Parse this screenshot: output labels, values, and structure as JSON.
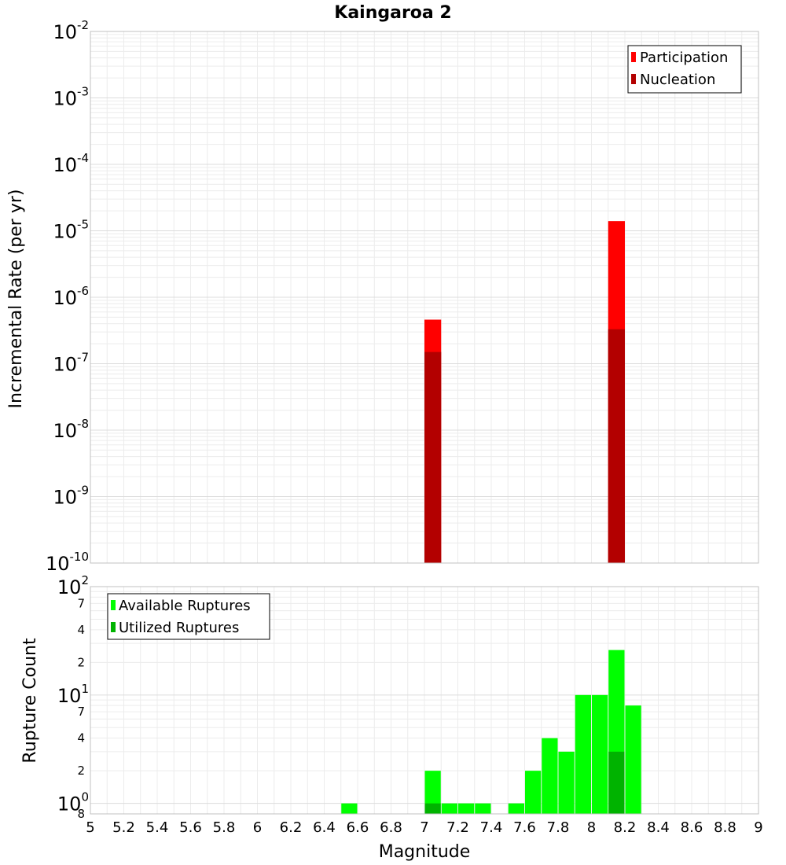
{
  "chart_data": [
    {
      "type": "bar",
      "title": "Kaingaroa 2",
      "ylabel": "Incremental Rate (per yr)",
      "yscale": "log",
      "ylim": [
        1e-10,
        0.01
      ],
      "xlim": [
        5,
        9
      ],
      "bar_width": 0.1,
      "y_tick_exponents": [
        "-10",
        "-9",
        "-8",
        "-7",
        "-6",
        "-5",
        "-4",
        "-3",
        "-2"
      ],
      "y_tick_base": "10",
      "legend": {
        "position": "top-right"
      },
      "grid": true,
      "series": [
        {
          "name": "Participation",
          "color": "#ff0000",
          "x": [
            7.05,
            8.15
          ],
          "values": [
            4.6e-07,
            1.4e-05
          ]
        },
        {
          "name": "Nucleation",
          "color": "#b30000",
          "x": [
            7.05,
            8.15
          ],
          "values": [
            1.5e-07,
            3.3e-07
          ]
        }
      ]
    },
    {
      "type": "bar",
      "xlabel": "Magnitude",
      "ylabel": "Rupture Count",
      "yscale": "log",
      "ylim": [
        0.8,
        100
      ],
      "xlim": [
        5,
        9
      ],
      "bar_width": 0.1,
      "x_ticks": [
        "5",
        "5.2",
        "5.4",
        "5.6",
        "5.8",
        "6",
        "6.2",
        "6.4",
        "6.6",
        "6.8",
        "7",
        "7.2",
        "7.4",
        "7.6",
        "7.8",
        "8",
        "8.2",
        "8.4",
        "8.6",
        "8.8",
        "9"
      ],
      "y_major_ticks": [
        {
          "value": 1,
          "base": "10",
          "exp": "0"
        },
        {
          "value": 10,
          "base": "10",
          "exp": "1"
        },
        {
          "value": 100,
          "base": "10",
          "exp": "2"
        }
      ],
      "y_minor_ticks": [
        {
          "value": 0.8,
          "label": "8"
        },
        {
          "value": 2,
          "label": "2"
        },
        {
          "value": 4,
          "label": "4"
        },
        {
          "value": 7,
          "label": "7"
        },
        {
          "value": 20,
          "label": "2"
        },
        {
          "value": 40,
          "label": "4"
        },
        {
          "value": 70,
          "label": "7"
        }
      ],
      "legend": {
        "position": "top-left"
      },
      "grid": true,
      "series": [
        {
          "name": "Available Ruptures",
          "color": "#00ff00",
          "x": [
            6.55,
            7.05,
            7.15,
            7.25,
            7.35,
            7.55,
            7.65,
            7.75,
            7.85,
            7.95,
            8.05,
            8.15,
            8.25
          ],
          "values": [
            1,
            2,
            1,
            1,
            1,
            1,
            2,
            4,
            3,
            10,
            10,
            26,
            8
          ]
        },
        {
          "name": "Utilized Ruptures",
          "color": "#00b300",
          "x": [
            7.05,
            8.15
          ],
          "values": [
            1,
            3
          ]
        }
      ]
    }
  ]
}
